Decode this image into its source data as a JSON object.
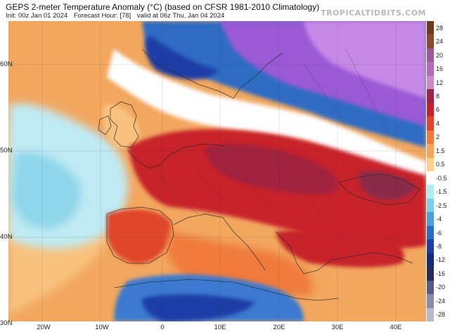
{
  "header": {
    "title": "GEPS 2-meter Temperature Anomaly (°C) (based on CFSR 1981-2010 Climatology)",
    "init": "Init: 00z Jan 01 2024",
    "forecast_hour": "Forecast Hour: [78]",
    "valid": "valid at 06z Thu, Jan 04 2024",
    "brand": "TROPICALTIDBITS.COM"
  },
  "axes": {
    "lat_labels": [
      "60N",
      "50N",
      "40N",
      "30N"
    ],
    "lon_labels": [
      "20W",
      "10W",
      "0",
      "10E",
      "20E",
      "30E",
      "40E"
    ]
  },
  "colorbar": {
    "labels": [
      "28",
      "24",
      "20",
      "16",
      "12",
      "8",
      "6",
      "4",
      "2",
      "1.5",
      "0.5",
      "-0.5",
      "-1.5",
      "-2.5",
      "-4",
      "-6",
      "-8",
      "-12",
      "-16",
      "-20",
      "-24",
      "-28"
    ],
    "colors": [
      "#6e3a1e",
      "#8a4a2e",
      "#9a5a9a",
      "#b56ab6",
      "#c98ac6",
      "#a0224a",
      "#c8202a",
      "#e0462c",
      "#f07a3a",
      "#f7a55a",
      "#fbd08c",
      "#ffffff",
      "#b5ecf2",
      "#7ccfe6",
      "#4aa0dc",
      "#2a6ac8",
      "#1e3ea6",
      "#152a7a",
      "#2a2a5a",
      "#5a5a8a",
      "#8a8aaa",
      "#b8b8c8"
    ]
  },
  "map": {
    "colors": {
      "ocean_base": "#f2a75f",
      "cold_atlantic": "#bfeaf3",
      "white_band": "#ffffff",
      "light_blue": "#8ed6ea",
      "scandinavia_blue": "#2e6cc4",
      "deep_blue": "#1e3ea6",
      "purple": "#9a5ad6",
      "light_purple": "#c58ae6",
      "red": "#c8202a",
      "dark_red": "#a0223e",
      "maroon": "#8a2a4a",
      "orange": "#f07a3a",
      "africa_blue": "#3a7ad0"
    }
  }
}
